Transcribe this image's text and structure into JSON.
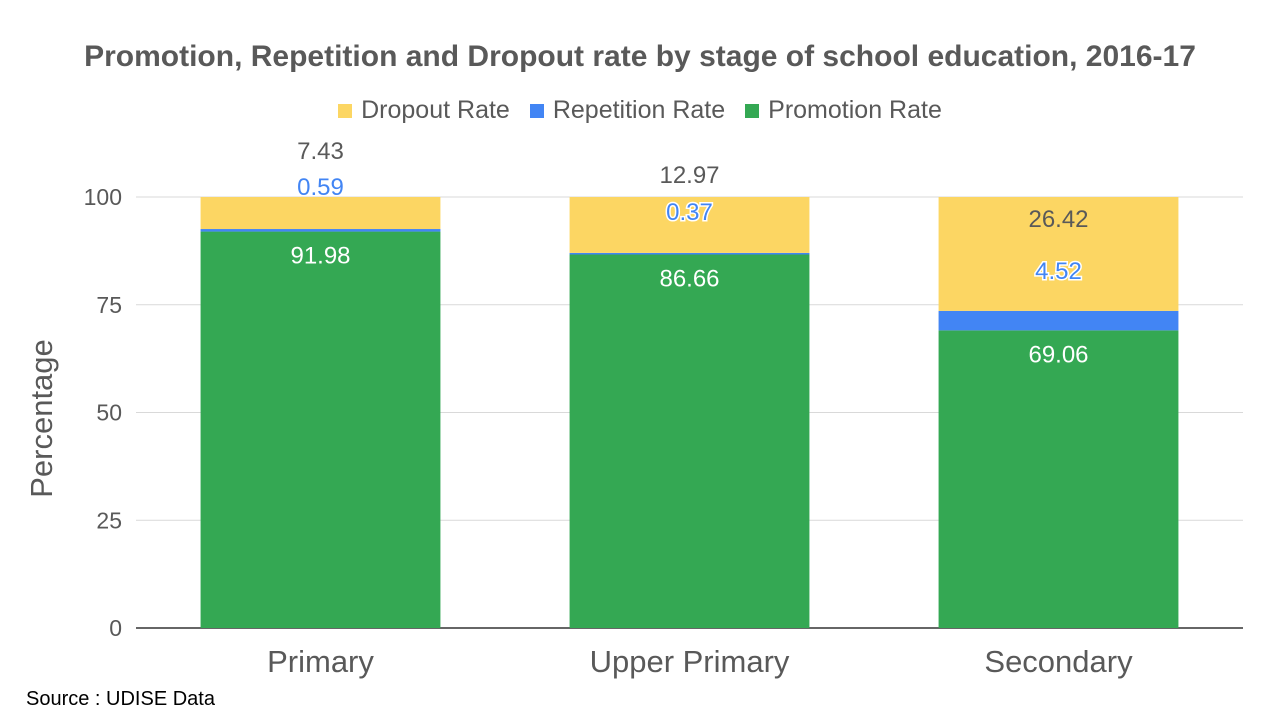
{
  "chart_data": {
    "type": "bar",
    "stacked": true,
    "title": "Promotion, Repetition and Dropout rate by stage of school education, 2016-17",
    "ylabel": "Percentage",
    "xlabel": "",
    "ylim": [
      0,
      100
    ],
    "yticks": [
      0,
      25,
      50,
      75,
      100
    ],
    "grid": true,
    "legend_position": "top",
    "categories": [
      "Primary",
      "Upper Primary",
      "Secondary"
    ],
    "series": [
      {
        "name": "Promotion Rate",
        "color": "#34a853",
        "label_color": "#ffffff",
        "values": [
          91.98,
          86.66,
          69.06
        ],
        "labels": [
          "91.98",
          "86.66",
          "69.06"
        ]
      },
      {
        "name": "Repetition Rate",
        "color": "#4285f4",
        "label_color": "#4285f4",
        "values": [
          0.59,
          0.37,
          4.52
        ],
        "labels": [
          "0.59",
          "0.37",
          "4.52"
        ]
      },
      {
        "name": "Dropout Rate",
        "color": "#fcd663",
        "label_color": "#595959",
        "values": [
          7.43,
          12.97,
          26.42
        ],
        "labels": [
          "7.43",
          "12.97",
          "26.42"
        ]
      }
    ],
    "legend_order": [
      "Dropout Rate",
      "Repetition Rate",
      "Promotion Rate"
    ]
  },
  "source_note": "Source : UDISE Data"
}
